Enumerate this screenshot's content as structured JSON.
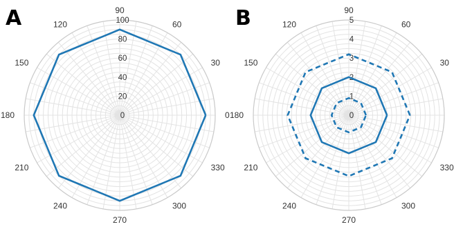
{
  "chart_data": [
    {
      "type": "line",
      "panel_label": "A",
      "subtype": "polar",
      "theta_unit": "degrees",
      "theta_ticks": [
        "0",
        "30",
        "60",
        "90",
        "120",
        "150",
        "180",
        "210",
        "240",
        "270",
        "300",
        "330"
      ],
      "r_ticks": [
        "0",
        "20",
        "40",
        "60",
        "80",
        "100"
      ],
      "rlim": [
        0,
        100
      ],
      "grid": true,
      "series": [
        {
          "theta": [
            0,
            45,
            90,
            135,
            180,
            225,
            270,
            315,
            360
          ],
          "r": [
            90,
            90,
            90,
            90,
            90,
            90,
            90,
            90,
            90
          ],
          "color": "#1f77b4",
          "line_style": "solid"
        }
      ]
    },
    {
      "type": "line",
      "panel_label": "B",
      "subtype": "polar",
      "theta_unit": "degrees",
      "theta_ticks": [
        "0",
        "30",
        "60",
        "90",
        "120",
        "150",
        "180",
        "210",
        "240",
        "270",
        "300",
        "330"
      ],
      "r_ticks": [
        "0",
        "1",
        "2",
        "3",
        "4",
        "5"
      ],
      "rlim": [
        0,
        5
      ],
      "grid": true,
      "series": [
        {
          "theta": [
            0,
            45,
            90,
            135,
            180,
            225,
            270,
            315,
            360
          ],
          "r": [
            0.9,
            0.9,
            0.9,
            0.9,
            0.9,
            0.9,
            0.9,
            0.9,
            0.9
          ],
          "color": "#1f77b4",
          "line_style": "dashed"
        },
        {
          "theta": [
            0,
            45,
            90,
            135,
            180,
            225,
            270,
            315,
            360
          ],
          "r": [
            2,
            2,
            2,
            2,
            2,
            2,
            2,
            2,
            2
          ],
          "color": "#1f77b4",
          "line_style": "solid"
        },
        {
          "theta": [
            0,
            45,
            90,
            135,
            180,
            225,
            270,
            315,
            360
          ],
          "r": [
            3.2,
            3.2,
            3.2,
            3.2,
            3.2,
            3.2,
            3.2,
            3.2,
            3.2
          ],
          "color": "#1f77b4",
          "line_style": "dashed"
        }
      ]
    }
  ]
}
